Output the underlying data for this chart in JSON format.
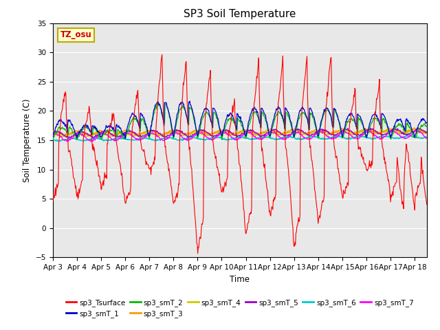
{
  "title": "SP3 Soil Temperature",
  "ylabel": "Soil Temperature (C)",
  "xlabel": "Time",
  "ylim": [
    -5,
    35
  ],
  "yticks": [
    -5,
    0,
    5,
    10,
    15,
    20,
    25,
    30,
    35
  ],
  "tz_label": "TZ_osu",
  "plot_bg": "#e8e8e8",
  "series_colors": {
    "sp3_Tsurface": "#ff0000",
    "sp3_smT_1": "#0000cc",
    "sp3_smT_2": "#00bb00",
    "sp3_smT_3": "#ff9900",
    "sp3_smT_4": "#cccc00",
    "sp3_smT_5": "#9900cc",
    "sp3_smT_6": "#00cccc",
    "sp3_smT_7": "#ff00ff"
  },
  "date_labels": [
    "Apr 3",
    "Apr 4",
    "Apr 5",
    "Apr 6",
    "Apr 7",
    "Apr 8",
    "Apr 9",
    "Apr 10",
    "Apr 11",
    "Apr 12",
    "Apr 13",
    "Apr 14",
    "Apr 15",
    "Apr 16",
    "Apr 17",
    "Apr 18"
  ],
  "n_days": 15.5,
  "n_points": 744
}
